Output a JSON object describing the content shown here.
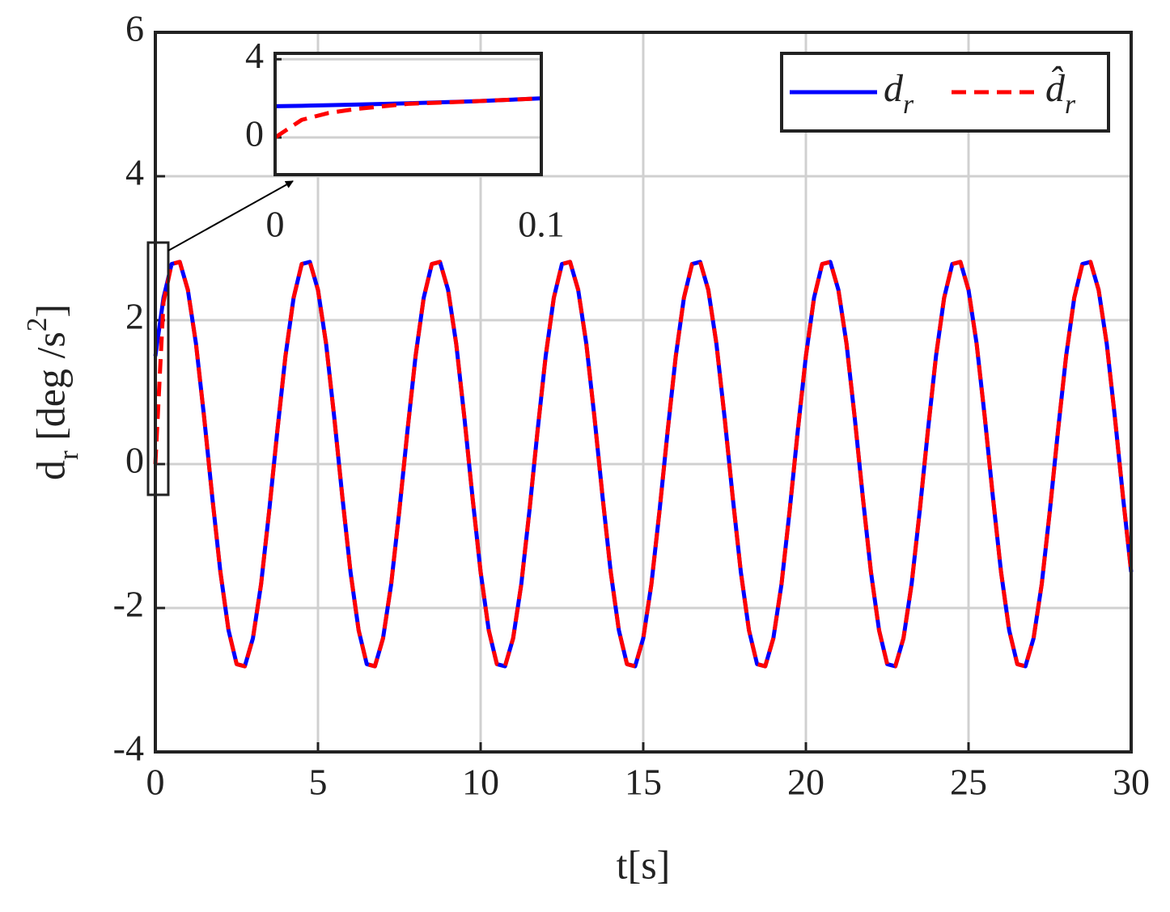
{
  "chart_data": [
    {
      "type": "line",
      "xlabel": "t[s]",
      "ylabel": "d_r [deg /s^2]",
      "x": [
        0,
        0.25,
        0.5,
        0.75,
        1,
        1.25,
        1.5,
        1.75,
        2,
        2.25,
        2.5,
        2.75,
        3,
        3.25,
        3.5,
        3.75,
        4,
        4.25,
        4.5,
        4.75,
        5,
        5.25,
        5.5,
        5.75,
        6,
        6.25,
        6.5,
        6.75,
        7,
        7.25,
        7.5,
        7.75,
        8,
        8.25,
        8.5,
        8.75,
        9,
        9.25,
        9.5,
        9.75,
        10,
        10.25,
        10.5,
        10.75,
        11,
        11.25,
        11.5,
        11.75,
        12,
        12.25,
        12.5,
        12.75,
        13,
        13.25,
        13.5,
        13.75,
        14,
        14.25,
        14.5,
        14.75,
        15,
        15.25,
        15.5,
        15.75,
        16,
        16.25,
        16.5,
        16.75,
        17,
        17.25,
        17.5,
        17.75,
        18,
        18.25,
        18.5,
        18.75,
        19,
        19.25,
        19.5,
        19.75,
        20,
        20.25,
        20.5,
        20.75,
        21,
        21.25,
        21.5,
        21.75,
        22,
        22.25,
        22.5,
        22.75,
        23,
        23.25,
        23.5,
        23.75,
        24,
        24.25,
        24.5,
        24.75,
        25,
        25.25,
        25.5,
        25.75,
        26,
        26.25,
        26.5,
        26.75,
        27,
        27.25,
        27.5,
        27.75,
        28,
        28.25,
        28.5,
        28.75,
        29,
        29.25,
        29.5,
        29.75,
        30
      ],
      "series": [
        {
          "name": "d_r",
          "color": "#0000ff",
          "dash": false,
          "values": [
            1.5,
            2.31,
            2.78,
            2.81,
            2.42,
            1.67,
            0.65,
            -0.46,
            -1.5,
            -2.31,
            -2.78,
            -2.81,
            -2.42,
            -1.67,
            -0.65,
            0.46,
            1.5,
            2.31,
            2.78,
            2.81,
            2.42,
            1.67,
            0.65,
            -0.46,
            -1.5,
            -2.31,
            -2.78,
            -2.81,
            -2.42,
            -1.67,
            -0.65,
            0.46,
            1.5,
            2.31,
            2.78,
            2.81,
            2.42,
            1.67,
            0.65,
            -0.46,
            -1.5,
            -2.31,
            -2.78,
            -2.81,
            -2.42,
            -1.67,
            -0.65,
            0.46,
            1.5,
            2.31,
            2.78,
            2.81,
            2.42,
            1.67,
            0.65,
            -0.46,
            -1.5,
            -2.31,
            -2.78,
            -2.81,
            -2.42,
            -1.67,
            -0.65,
            0.46,
            1.5,
            2.31,
            2.78,
            2.81,
            2.42,
            1.67,
            0.65,
            -0.46,
            -1.5,
            -2.31,
            -2.78,
            -2.81,
            -2.42,
            -1.67,
            -0.65,
            0.46,
            1.5,
            2.31,
            2.78,
            2.81,
            2.42,
            1.67,
            0.65,
            -0.46,
            -1.5,
            -2.31,
            -2.78,
            -2.81,
            -2.42,
            -1.67,
            -0.65,
            0.46,
            1.5,
            2.31,
            2.78,
            2.81,
            2.42,
            1.67,
            0.65,
            -0.46,
            -1.5,
            -2.31,
            -2.78,
            -2.81,
            -2.42,
            -1.67,
            -0.65,
            0.46,
            1.5,
            2.31,
            2.78,
            2.81,
            2.42,
            1.67,
            0.65,
            -0.46,
            -1.5
          ]
        },
        {
          "name": "d̂_r",
          "color": "#ff0000",
          "dash": true,
          "values": [
            0,
            2.25,
            2.78,
            2.81,
            2.42,
            1.67,
            0.65,
            -0.46,
            -1.5,
            -2.31,
            -2.78,
            -2.81,
            -2.42,
            -1.67,
            -0.65,
            0.46,
            1.5,
            2.31,
            2.78,
            2.81,
            2.42,
            1.67,
            0.65,
            -0.46,
            -1.5,
            -2.31,
            -2.78,
            -2.81,
            -2.42,
            -1.67,
            -0.65,
            0.46,
            1.5,
            2.31,
            2.78,
            2.81,
            2.42,
            1.67,
            0.65,
            -0.46,
            -1.5,
            -2.31,
            -2.78,
            -2.81,
            -2.42,
            -1.67,
            -0.65,
            0.46,
            1.5,
            2.31,
            2.78,
            2.81,
            2.42,
            1.67,
            0.65,
            -0.46,
            -1.5,
            -2.31,
            -2.78,
            -2.81,
            -2.42,
            -1.67,
            -0.65,
            0.46,
            1.5,
            2.31,
            2.78,
            2.81,
            2.42,
            1.67,
            0.65,
            -0.46,
            -1.5,
            -2.31,
            -2.78,
            -2.81,
            -2.42,
            -1.67,
            -0.65,
            0.46,
            1.5,
            2.31,
            2.78,
            2.81,
            2.42,
            1.67,
            0.65,
            -0.46,
            -1.5,
            -2.31,
            -2.78,
            -2.81,
            -2.42,
            -1.67,
            -0.65,
            0.46,
            1.5,
            2.31,
            2.78,
            2.81,
            2.42,
            1.67,
            0.65,
            -0.46,
            -1.5,
            -2.31,
            -2.78,
            -2.81,
            -2.42,
            -1.67,
            -0.65,
            0.46,
            1.5,
            2.31,
            2.78,
            2.81,
            2.42,
            1.67,
            0.65,
            -0.46,
            -1.5
          ]
        }
      ],
      "xlim": [
        0,
        30
      ],
      "xticks": [
        0,
        5,
        10,
        15,
        20,
        25,
        30
      ],
      "ylim": [
        -4,
        6
      ],
      "yticks": [
        -4,
        -2,
        0,
        2,
        4,
        6
      ],
      "grid": true,
      "legend": "upper right"
    },
    {
      "type": "line",
      "x": [
        0,
        0.01,
        0.02,
        0.03,
        0.05,
        0.075,
        0.1
      ],
      "series": [
        {
          "color": "#0000ff",
          "dash": false,
          "values": [
            1.6,
            1.62,
            1.65,
            1.68,
            1.75,
            1.85,
            2.0
          ]
        },
        {
          "color": "#ff0000",
          "dash": true,
          "values": [
            0,
            0.9,
            1.25,
            1.45,
            1.72,
            1.85,
            2.0
          ]
        }
      ],
      "xlim": [
        0,
        0.1
      ],
      "xticks": [
        0,
        0.1
      ],
      "ylim": [
        -1.9,
        4.3
      ],
      "yticks": [
        0,
        4
      ],
      "grid": true
    }
  ]
}
